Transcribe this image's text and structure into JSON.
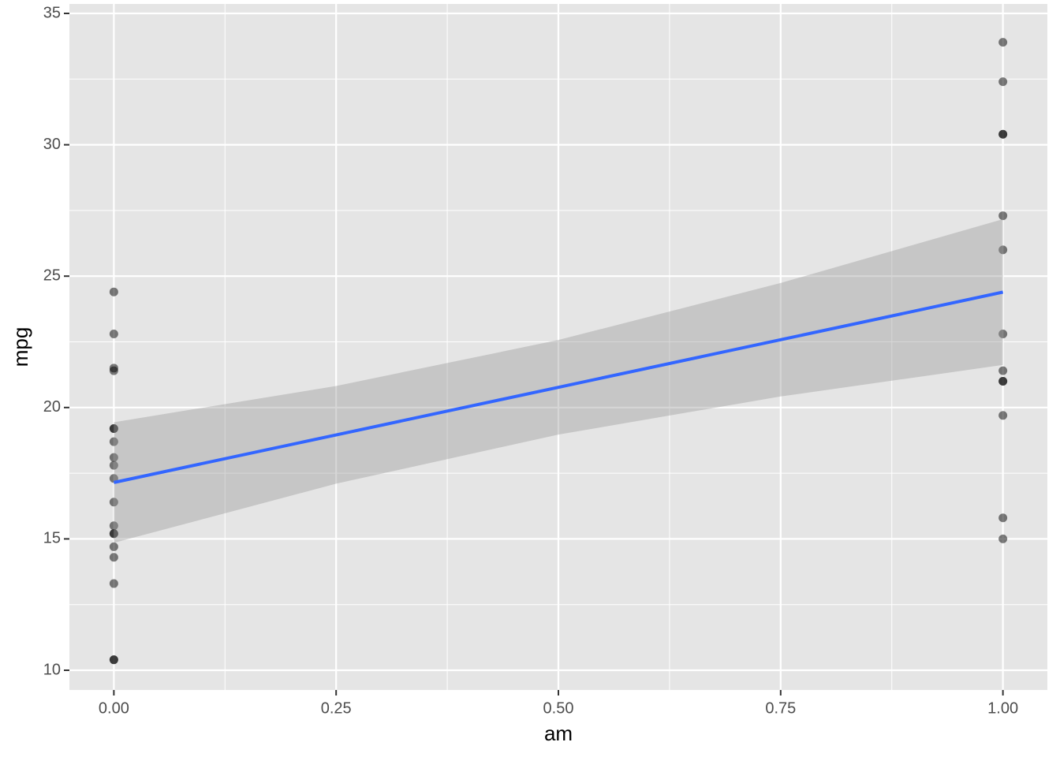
{
  "chart_data": {
    "type": "scatter",
    "x_label": "am",
    "y_label": "mpg",
    "points": {
      "x": [
        0,
        0,
        0,
        0,
        0,
        0,
        0,
        0,
        0,
        0,
        0,
        0,
        0,
        0,
        0,
        0,
        0,
        0,
        0,
        1,
        1,
        1,
        1,
        1,
        1,
        1,
        1,
        1,
        1,
        1,
        1,
        1
      ],
      "y": [
        21.4,
        18.7,
        18.1,
        14.3,
        24.4,
        22.8,
        19.2,
        17.8,
        16.4,
        17.3,
        15.2,
        10.4,
        10.4,
        14.7,
        21.5,
        13.3,
        15.2,
        15.5,
        19.2,
        21.0,
        21.0,
        22.8,
        32.4,
        30.4,
        33.9,
        27.3,
        26.0,
        30.4,
        15.8,
        19.7,
        15.0,
        21.4
      ],
      "color": "#000000"
    },
    "smooth": {
      "x": [
        0,
        0.25,
        0.5,
        0.75,
        1
      ],
      "y": [
        17.147,
        18.958,
        20.77,
        22.581,
        24.392
      ],
      "lower": [
        14.85,
        17.1,
        18.97,
        20.42,
        21.62
      ],
      "upper": [
        19.44,
        20.82,
        22.57,
        24.74,
        27.17
      ],
      "color": "#3366ff",
      "band_color": "#999999"
    },
    "xlim": [
      -0.05,
      1.05
    ],
    "ylim": [
      9.25,
      35.36
    ],
    "xticks": [
      {
        "value": 0,
        "label": "0.00"
      },
      {
        "value": 0.25,
        "label": "0.25"
      },
      {
        "value": 0.5,
        "label": "0.50"
      },
      {
        "value": 0.75,
        "label": "0.75"
      },
      {
        "value": 1,
        "label": "1.00"
      }
    ],
    "yticks": [
      10,
      15,
      20,
      25,
      30,
      35
    ],
    "x_minor_ticks": [
      0.125,
      0.375,
      0.625,
      0.875
    ],
    "y_minor_ticks": [
      12.5,
      17.5,
      22.5,
      27.5,
      32.5
    ],
    "grid": true
  }
}
